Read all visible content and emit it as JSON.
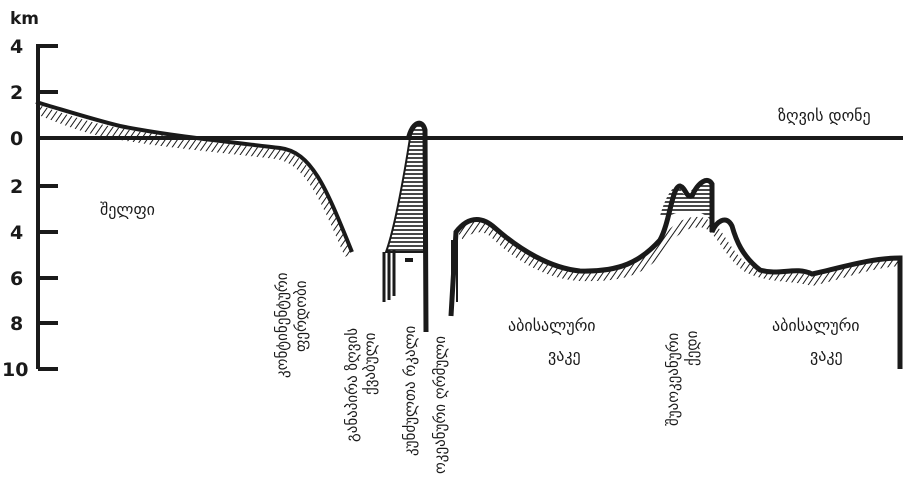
{
  "axis": {
    "unit": "km",
    "ticks": [
      "4",
      "2",
      "0",
      "2",
      "4",
      "6",
      "8",
      "10"
    ]
  },
  "labels": {
    "sea_level": "ზღვის დონე",
    "shelf": "შელფი",
    "continental_slope_1": "კონტინენტური",
    "continental_slope_2": "ფერდობი",
    "marginal_trench_1": "განაპირა ზღვის",
    "marginal_trench_2": "ქვაბული",
    "island_arc": "კუნძულთა რკალი",
    "oceanic_trench": "ოკეანური ღრმული",
    "abyssal_plain_left_1": "აბისალური",
    "abyssal_plain_left_2": "ვაკე",
    "mid_ocean_ridge_1": "შუაოკეანური",
    "mid_ocean_ridge_2": "ქედი",
    "abyssal_plain_right_1": "აბისალური",
    "abyssal_plain_right_2": "ვაკე"
  },
  "colors": {
    "ink": "#1a1a1a",
    "background": "#ffffff"
  }
}
